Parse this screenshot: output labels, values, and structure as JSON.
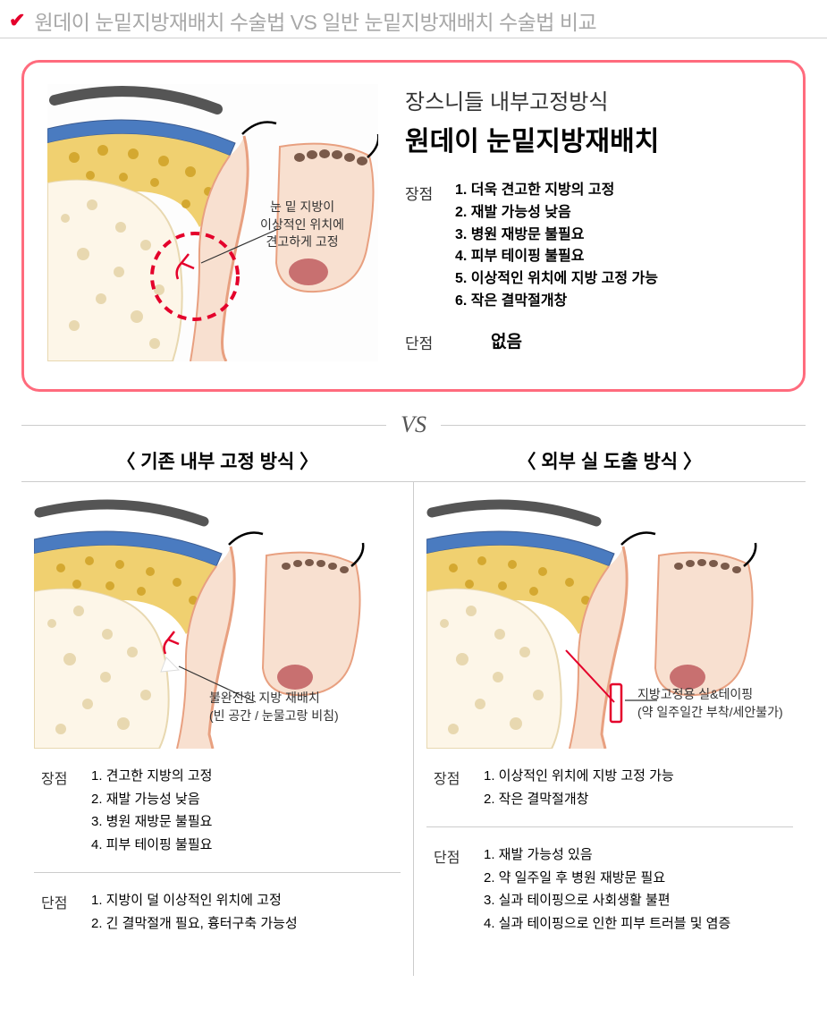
{
  "pageTitle": "원데이 눈밑지방재배치 수술법 VS 일반 눈밑지방재배치 수술법 비교",
  "colors": {
    "accentRed": "#e4002b",
    "cardBorder": "#ff6b7d",
    "titleGray": "#a8a8a8",
    "divider": "#cccccc",
    "tissueYellow": "#f0d070",
    "tissueYellowDark": "#d4a830",
    "skin": "#f8e0d0",
    "skinLine": "#e8a080",
    "bone": "#fdf6e8",
    "boneLine": "#e8d8b0",
    "muscleBlue": "#4a7bc0",
    "nostril": "#d48a8a",
    "bead": "#7a5a4a"
  },
  "topCard": {
    "subtitle1": "장스니들 내부고정방식",
    "subtitle2": "원데이 눈밑지방재배치",
    "diagramAnnot": "눈 밑 지방이\n이상적인 위치에\n견고하게 고정",
    "prosLabel": "장점",
    "pros": [
      "1. 더욱 견고한 지방의 고정",
      "2. 재발 가능성 낮음",
      "3. 병원 재방문 불필요",
      "4. 피부 테이핑 불필요",
      "5. 이상적인 위치에 지방 고정 가능",
      "6. 작은 결막절개창"
    ],
    "consLabel": "단점",
    "consText": "없음"
  },
  "vsText": "VS",
  "leftCol": {
    "header": "〈 기존 내부 고정 방식 〉",
    "diagramAnnot": "불완전한 지방 재배치\n(빈 공간 / 눈물고랑 비침)",
    "prosLabel": "장점",
    "pros": [
      "1. 견고한 지방의 고정",
      "2. 재발 가능성 낮음",
      "3. 병원 재방문 불필요",
      "4. 피부 테이핑 불필요"
    ],
    "consLabel": "단점",
    "cons": [
      "1. 지방이 덜 이상적인 위치에 고정",
      "2. 긴 결막절개 필요, 흉터구축 가능성"
    ]
  },
  "rightCol": {
    "header": "〈 외부 실 도출 방식 〉",
    "diagramAnnot": "지방고정용 실&테이핑\n(약 일주일간 부착/세안불가)",
    "prosLabel": "장점",
    "pros": [
      "1. 이상적인 위치에 지방 고정 가능",
      "2. 작은 결막절개창"
    ],
    "consLabel": "단점",
    "cons": [
      "1. 재발 가능성 있음",
      "2. 약 일주일 후 병원 재방문 필요",
      "3. 실과 테이핑으로 사회생활 불편",
      "4. 실과 테이핑으로 인한 피부 트러블 및 염증"
    ]
  }
}
